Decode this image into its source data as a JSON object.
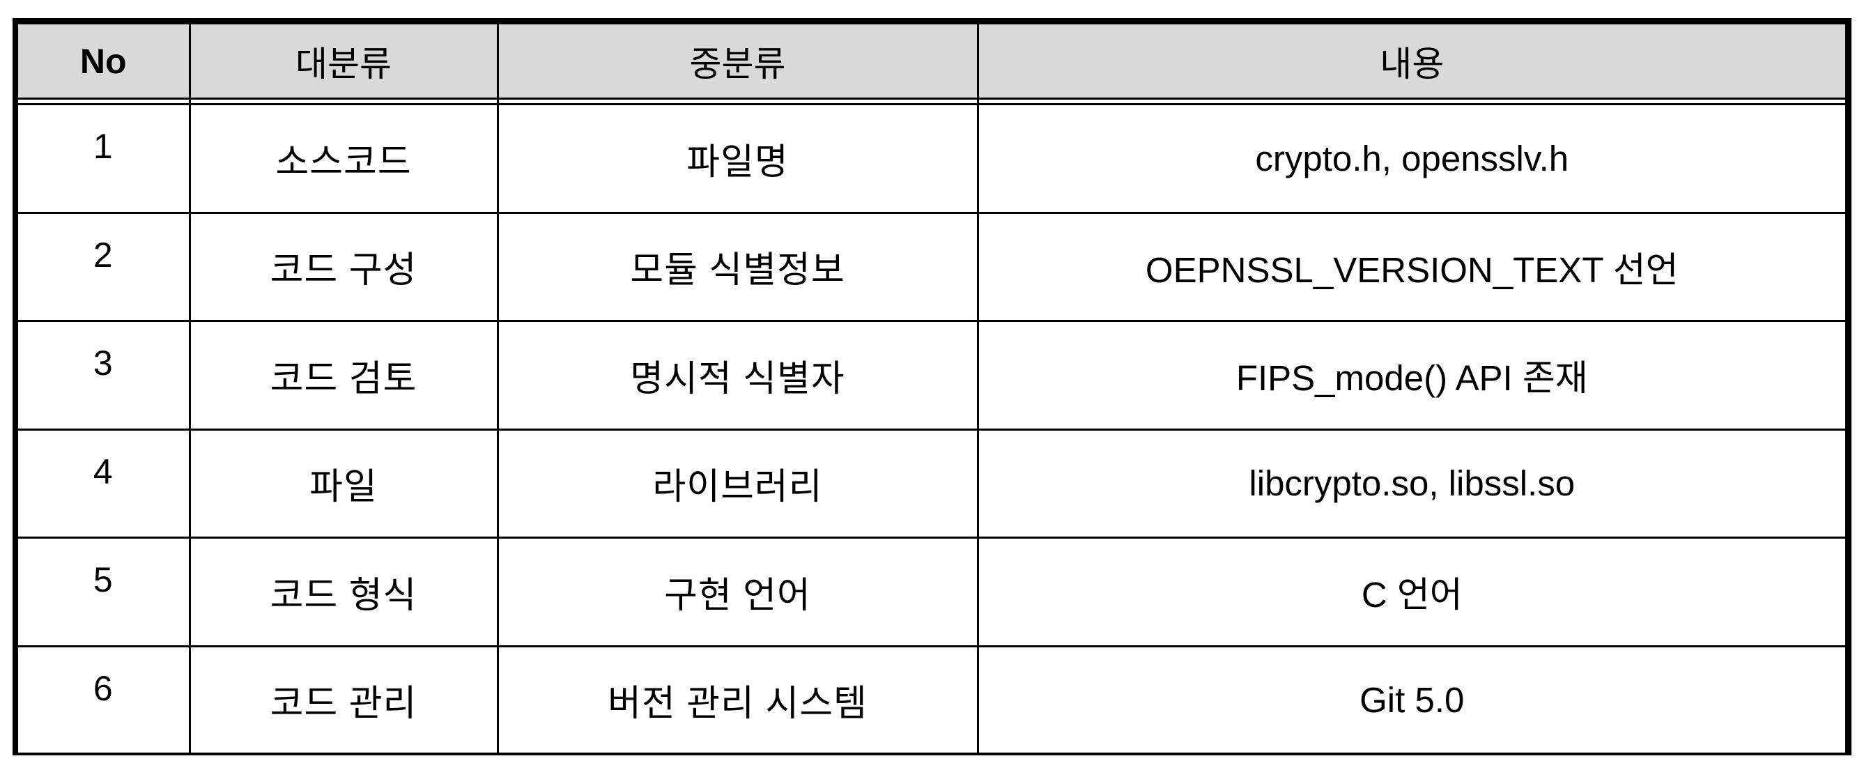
{
  "table": {
    "headers": [
      "No",
      "대분류",
      "중분류",
      "내용"
    ],
    "rows": [
      {
        "no": "1",
        "major": "소스코드",
        "middle": "파일명",
        "content": "crypto.h, opensslv.h"
      },
      {
        "no": "2",
        "major": "코드 구성",
        "middle": "모듈 식별정보",
        "content": "OEPNSSL_VERSION_TEXT 선언"
      },
      {
        "no": "3",
        "major": "코드 검토",
        "middle": "명시적 식별자",
        "content": "FIPS_mode() API 존재"
      },
      {
        "no": "4",
        "major": "파일",
        "middle": "라이브러리",
        "content": "libcrypto.so, libssl.so"
      },
      {
        "no": "5",
        "major": "코드 형식",
        "middle": "구현 언어",
        "content": "C 언어"
      },
      {
        "no": "6",
        "major": "코드 관리",
        "middle": "버전 관리 시스템",
        "content": "Git 5.0"
      }
    ]
  },
  "colors": {
    "header_background": "#d9d9d9",
    "border": "#000000"
  }
}
